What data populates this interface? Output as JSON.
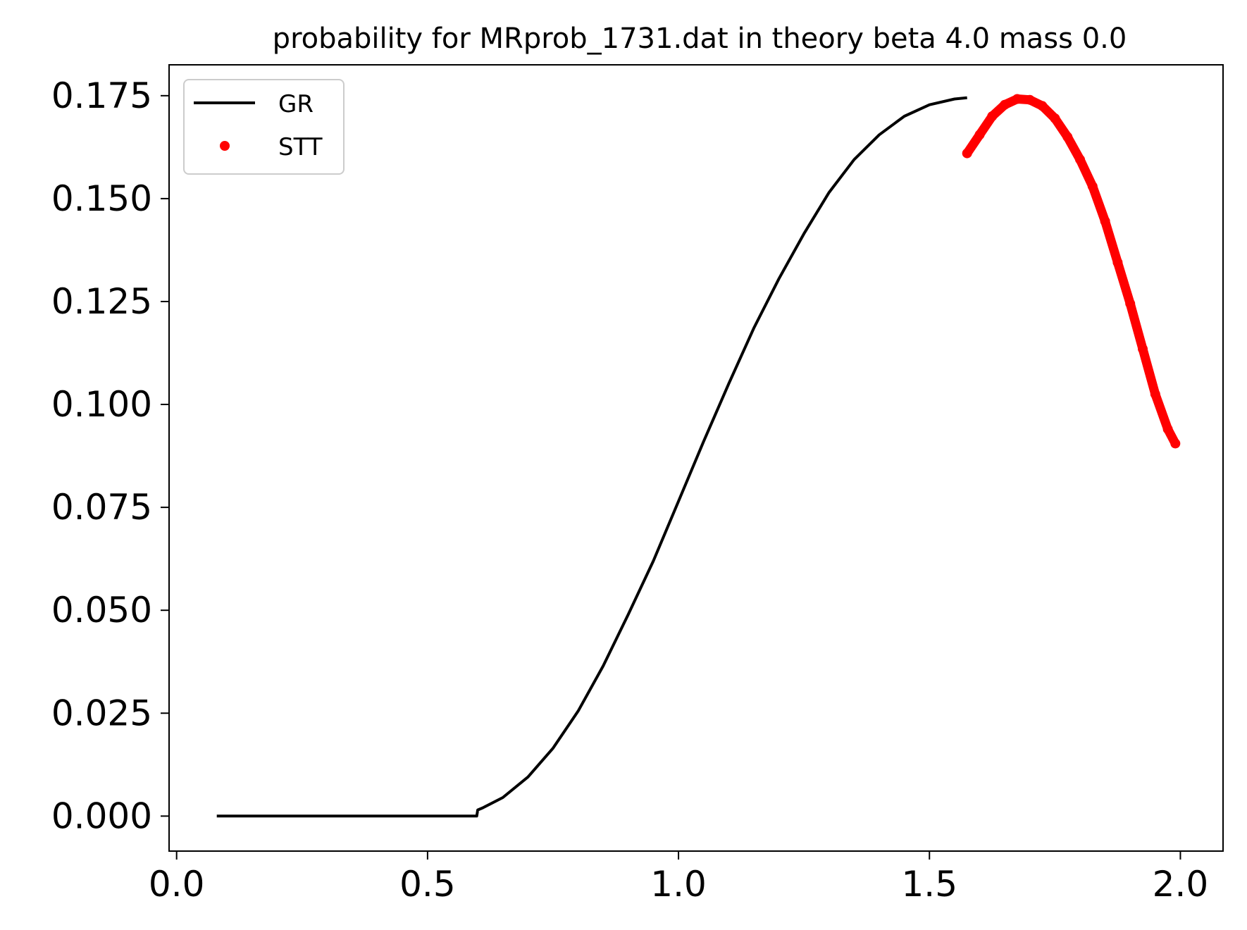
{
  "chart_data": {
    "type": "line",
    "title": "probability for MRprob_1731.dat in theory beta 4.0 mass 0.0",
    "xlabel": "",
    "ylabel": "",
    "xlim": [
      -0.015,
      2.085
    ],
    "ylim": [
      -0.0085,
      0.1825
    ],
    "x_ticks": [
      0.0,
      0.5,
      1.0,
      1.5,
      2.0
    ],
    "x_tick_labels": [
      "0.0",
      "0.5",
      "1.0",
      "1.5",
      "2.0"
    ],
    "y_ticks": [
      0.0,
      0.025,
      0.05,
      0.075,
      0.1,
      0.125,
      0.15,
      0.175
    ],
    "y_tick_labels": [
      "0.000",
      "0.025",
      "0.050",
      "0.075",
      "0.100",
      "0.125",
      "0.150",
      "0.175"
    ],
    "grid": false,
    "legend_position": "upper left",
    "series": [
      {
        "name": "GR",
        "style": "line",
        "color": "#000000",
        "x": [
          0.08,
          0.2,
          0.4,
          0.598,
          0.6,
          0.61,
          0.65,
          0.7,
          0.75,
          0.8,
          0.85,
          0.9,
          0.95,
          1.0,
          1.05,
          1.1,
          1.15,
          1.2,
          1.25,
          1.3,
          1.35,
          1.4,
          1.45,
          1.5,
          1.55,
          1.575
        ],
        "y": [
          0.0,
          0.0,
          0.0,
          0.0,
          0.0015,
          0.002,
          0.0045,
          0.0095,
          0.0165,
          0.0255,
          0.0365,
          0.049,
          0.062,
          0.0765,
          0.091,
          0.105,
          0.1185,
          0.1305,
          0.1415,
          0.1515,
          0.1595,
          0.1655,
          0.17,
          0.1728,
          0.1742,
          0.1745
        ]
      },
      {
        "name": "STT",
        "style": "dots",
        "color": "#ff0000",
        "x": [
          1.575,
          1.6,
          1.625,
          1.65,
          1.675,
          1.7,
          1.725,
          1.75,
          1.775,
          1.8,
          1.825,
          1.85,
          1.875,
          1.9,
          1.925,
          1.95,
          1.975,
          1.99
        ],
        "y": [
          0.161,
          0.1655,
          0.17,
          0.1728,
          0.1742,
          0.174,
          0.1725,
          0.1695,
          0.165,
          0.1595,
          0.153,
          0.1445,
          0.1345,
          0.1245,
          0.1135,
          0.1025,
          0.094,
          0.0905
        ]
      }
    ]
  },
  "colors": {
    "gr": "#000000",
    "stt": "#ff0000",
    "legend_border": "#cccccc"
  }
}
